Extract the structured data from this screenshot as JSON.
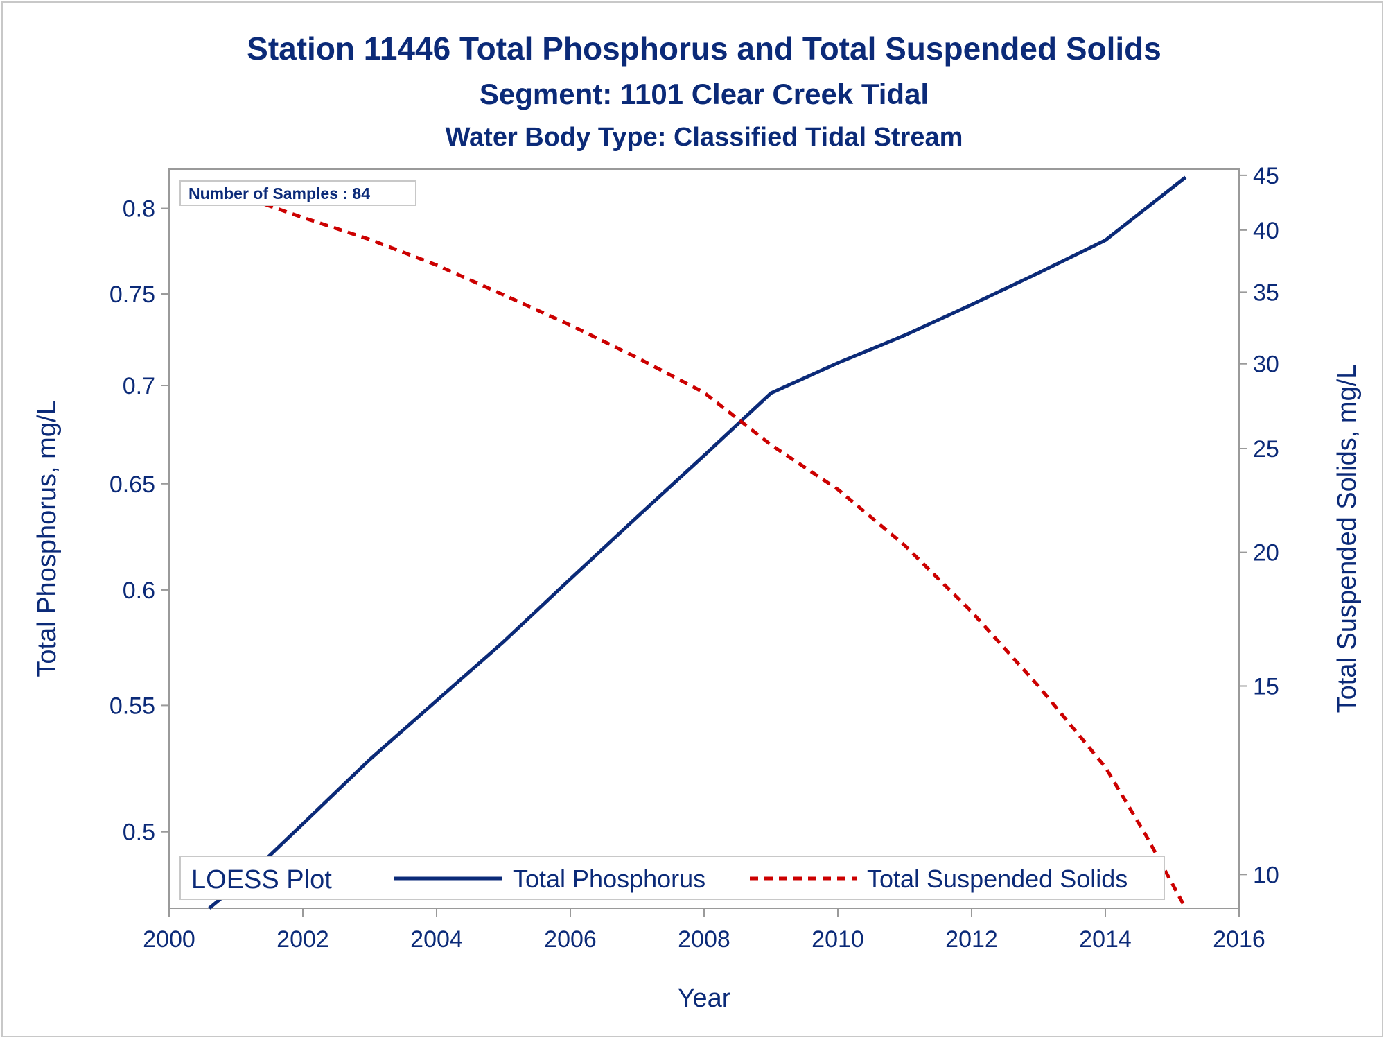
{
  "chart_data": {
    "type": "line",
    "title": "Station 11446  Total Phosphorus and Total Suspended Solids",
    "subtitle": "Segment: 1101  Clear Creek Tidal",
    "subtitle2": "Water Body Type: Classified Tidal Stream",
    "xlabel": "Year",
    "ylabel_left": "Total Phosphorus, mg/L",
    "ylabel_right": "Total Suspended Solids, mg/L",
    "xlim": [
      2000,
      2016
    ],
    "x_ticks": [
      2000,
      2002,
      2004,
      2006,
      2008,
      2010,
      2012,
      2014,
      2016
    ],
    "ylim_left": [
      0.472,
      0.824
    ],
    "y_left_scale": "log",
    "y_left_ticks": [
      0.5,
      0.55,
      0.6,
      0.65,
      0.7,
      0.75,
      0.8
    ],
    "y_left_tick_labels": [
      "0.5",
      "0.55",
      "0.6",
      "0.65",
      "0.7",
      "0.75",
      "0.8"
    ],
    "ylim_right": [
      9.3,
      45.6
    ],
    "y_right_scale": "log",
    "y_right_ticks": [
      10,
      15,
      20,
      25,
      30,
      35,
      40,
      45
    ],
    "y_right_tick_labels": [
      "10",
      "15",
      "20",
      "25",
      "30",
      "35",
      "40",
      "45"
    ],
    "inset_text": "Number of Samples : 84",
    "legend": {
      "title": "LOESS Plot",
      "position": "bottom-inside",
      "entries": [
        "Total Phosphorus",
        "Total Suspended Solids"
      ]
    },
    "series": [
      {
        "name": "Total Phosphorus",
        "axis": "left",
        "color": "#0b2a78",
        "style": "solid",
        "x": [
          2000.6,
          2001.2,
          2002.0,
          2003.0,
          2004.0,
          2005.0,
          2006.0,
          2007.0,
          2008.0,
          2009.0,
          2010.0,
          2011.0,
          2012.0,
          2013.0,
          2014.0,
          2015.2
        ],
        "values": [
          0.472,
          0.484,
          0.503,
          0.528,
          0.552,
          0.577,
          0.605,
          0.634,
          0.664,
          0.696,
          0.712,
          0.727,
          0.744,
          0.762,
          0.781,
          0.819
        ]
      },
      {
        "name": "Total Suspended Solids",
        "axis": "right",
        "color": "#cc0000",
        "style": "dashed",
        "x": [
          2000.6,
          2001.0,
          2002.0,
          2003.0,
          2004.0,
          2005.0,
          2006.0,
          2007.0,
          2008.0,
          2009.0,
          2010.0,
          2011.0,
          2012.0,
          2013.0,
          2014.0,
          2014.6,
          2015.2
        ],
        "values": [
          43.8,
          43.2,
          41.1,
          39.2,
          37.1,
          34.8,
          32.6,
          30.4,
          28.2,
          25.2,
          22.9,
          20.3,
          17.6,
          15.0,
          12.6,
          10.9,
          9.3
        ]
      }
    ]
  }
}
